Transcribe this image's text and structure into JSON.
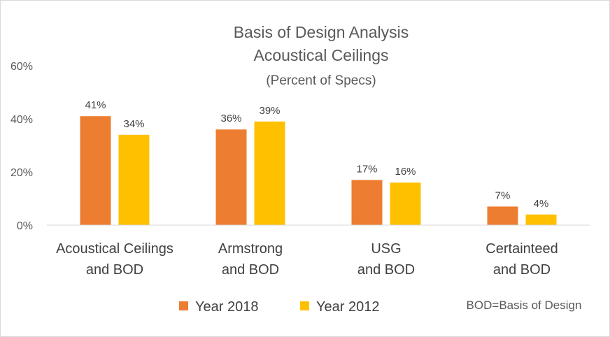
{
  "chart_data": {
    "type": "bar",
    "title": "Basis of Design Analysis",
    "subtitle": "Acoustical Ceilings",
    "subtitle2": "(Percent of Specs)",
    "categories": [
      [
        "Acoustical Ceilings",
        "and BOD"
      ],
      [
        "Armstrong",
        "and BOD"
      ],
      [
        "USG",
        "and BOD"
      ],
      [
        "Certainteed",
        "and BOD"
      ]
    ],
    "series": [
      {
        "name": "Year 2018",
        "color": "#ED7D31",
        "values": [
          41,
          36,
          17,
          7
        ],
        "labels": [
          "41%",
          "36%",
          "17%",
          "7%"
        ]
      },
      {
        "name": "Year 2012",
        "color": "#FFC000",
        "values": [
          34,
          39,
          16,
          4
        ],
        "labels": [
          "34%",
          "39%",
          "16%",
          "4%"
        ]
      }
    ],
    "ylim": [
      0,
      60
    ],
    "yticks": [
      0,
      20,
      40,
      60
    ],
    "ytick_labels": [
      "0%",
      "20%",
      "40%",
      "60%"
    ],
    "xlabel": "",
    "ylabel": "",
    "grid": false,
    "legend_position": "bottom",
    "note": "BOD=Basis of Design",
    "axis_color": "#d9d9d9"
  }
}
